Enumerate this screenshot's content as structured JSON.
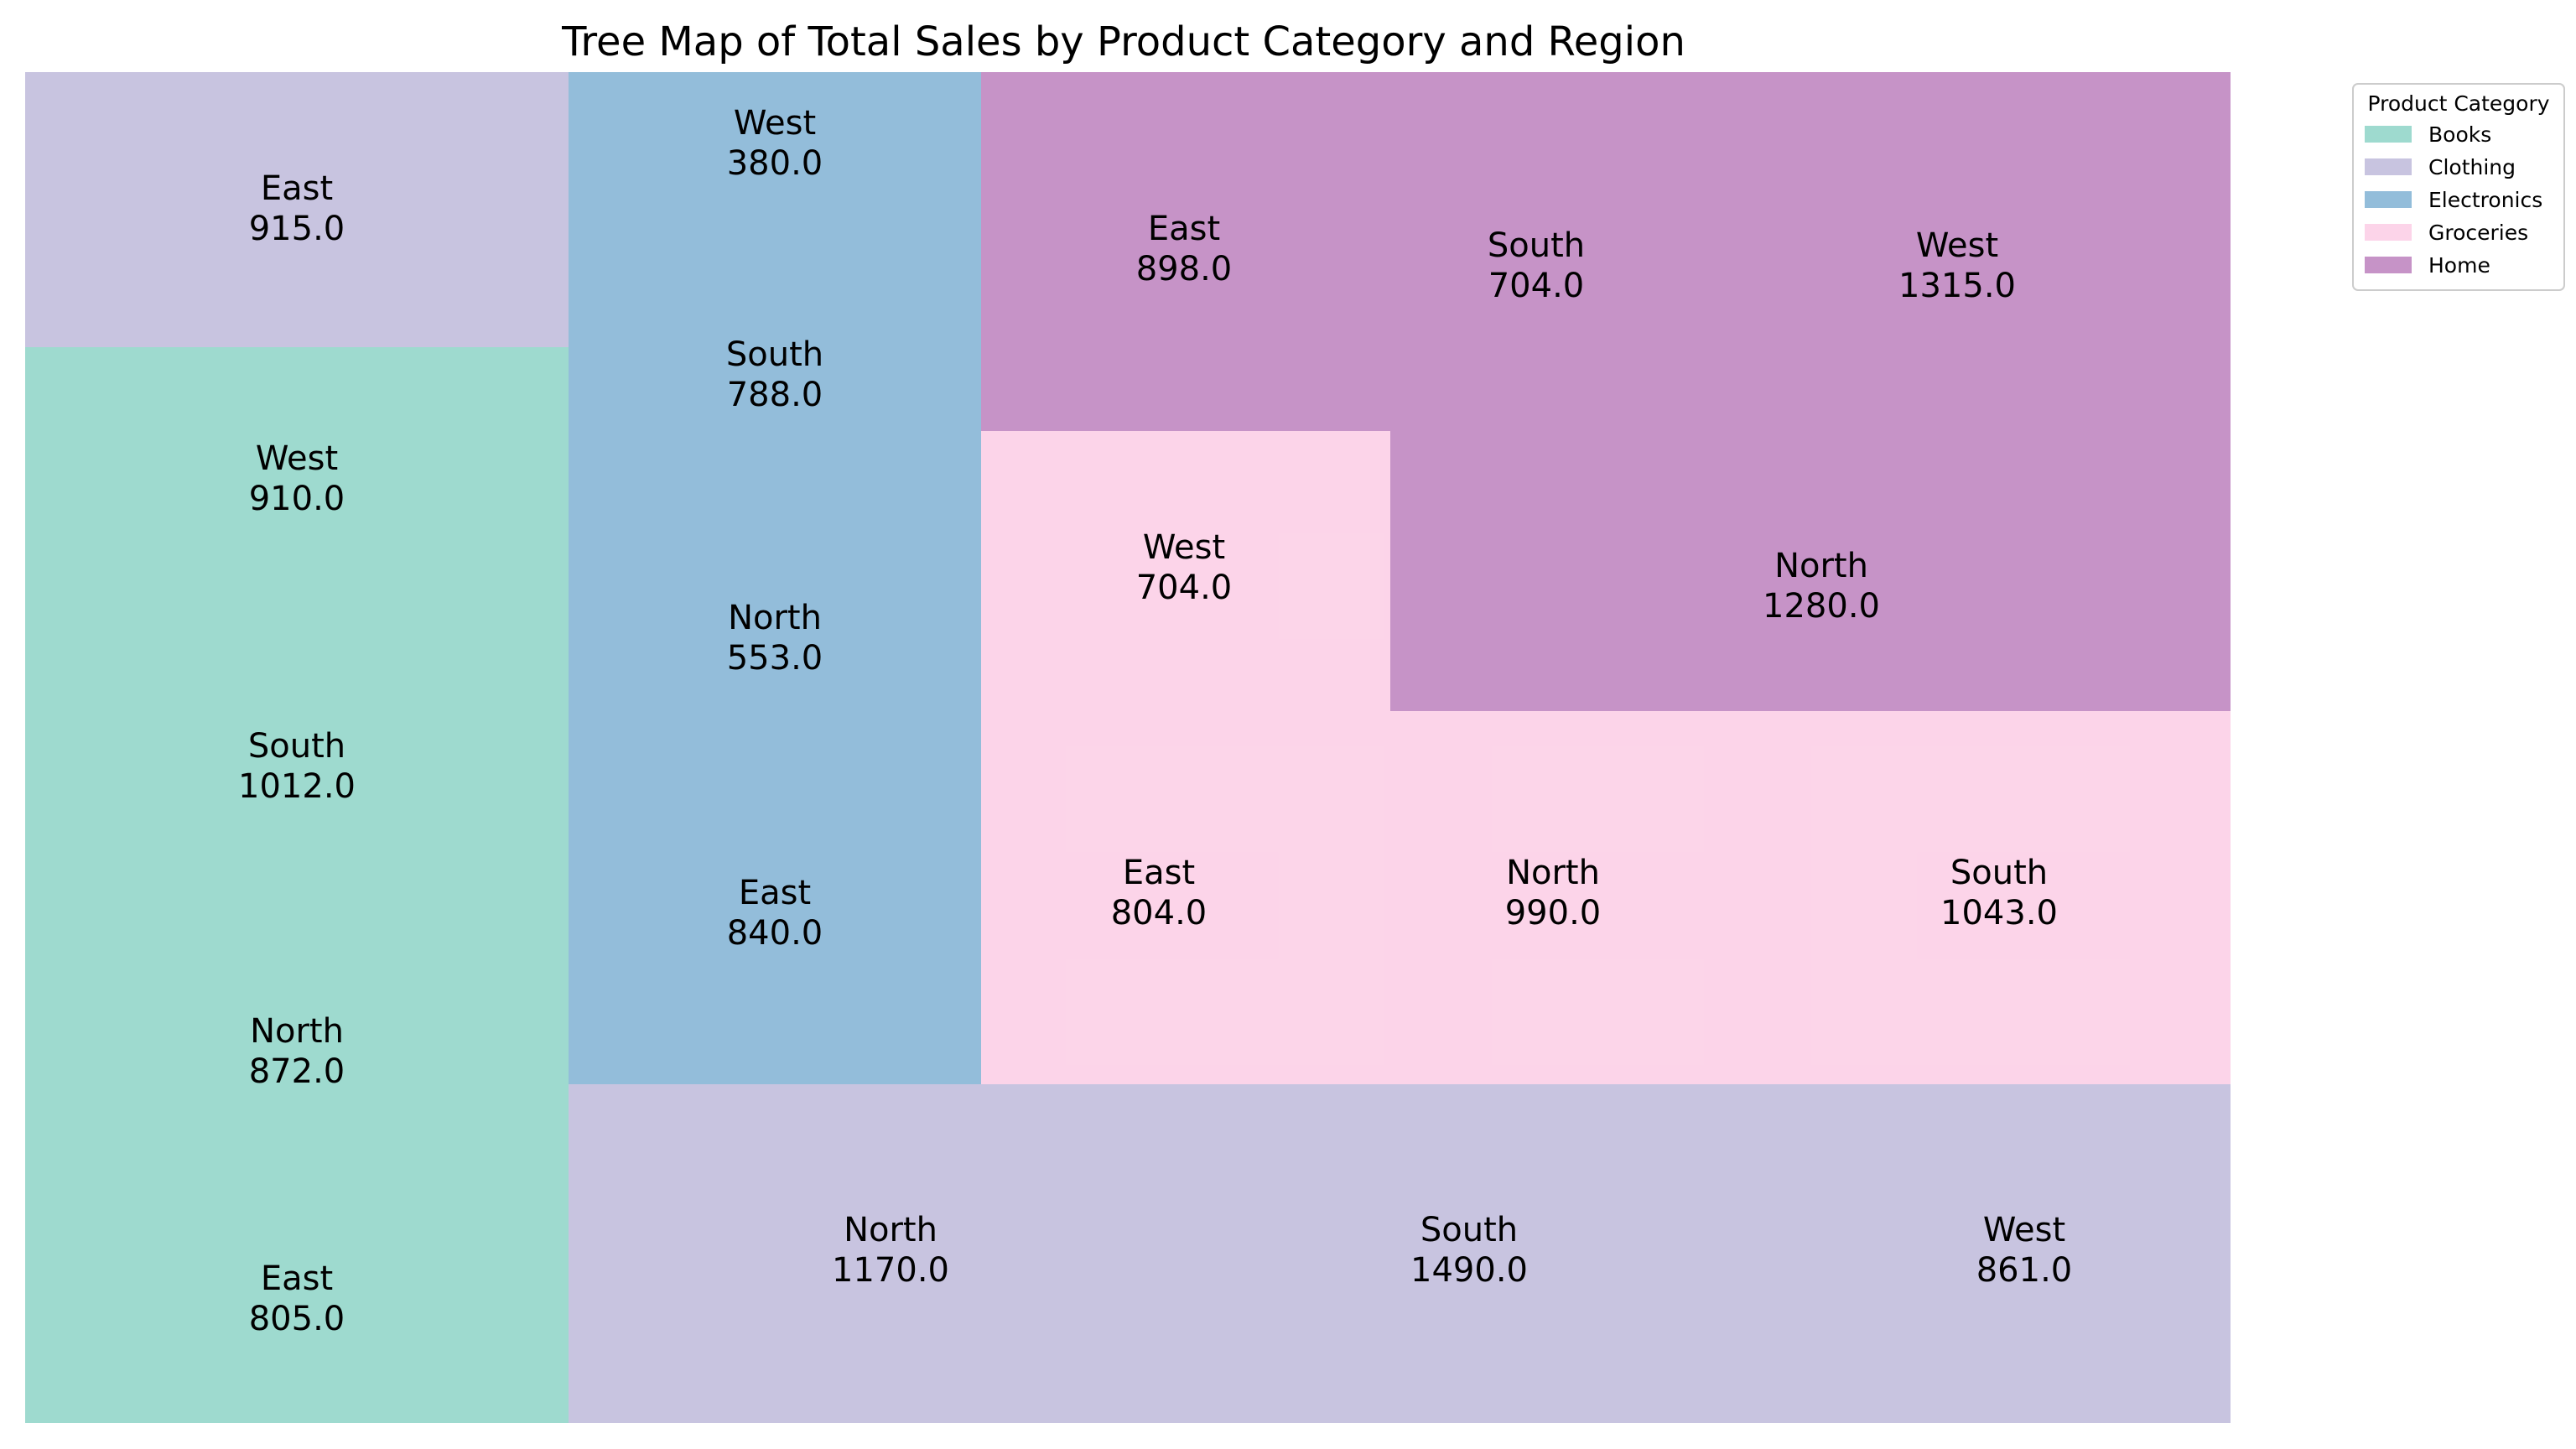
{
  "chart_data": {
    "type": "treemap",
    "title": "Tree Map of Total Sales by Product Category and Region",
    "legend": {
      "title": "Product Category",
      "placement": "upper-right-outside",
      "entries": [
        {
          "name": "Books",
          "color": "#8dd3c7"
        },
        {
          "name": "Clothing",
          "color": "#bebada"
        },
        {
          "name": "Electronics",
          "color": "#80b1d3"
        },
        {
          "name": "Groceries",
          "color": "#fccde5"
        },
        {
          "name": "Home",
          "color": "#bc80bd"
        }
      ]
    },
    "tiles": [
      {
        "category": "Books",
        "region": "East",
        "value": 805.0,
        "value_label": "805.0"
      },
      {
        "category": "Books",
        "region": "North",
        "value": 872.0,
        "value_label": "872.0"
      },
      {
        "category": "Books",
        "region": "South",
        "value": 1012.0,
        "value_label": "1012.0"
      },
      {
        "category": "Books",
        "region": "West",
        "value": 910.0,
        "value_label": "910.0"
      },
      {
        "category": "Clothing",
        "region": "East",
        "value": 915.0,
        "value_label": "915.0"
      },
      {
        "category": "Electronics",
        "region": "West",
        "value": 380.0,
        "value_label": "380.0"
      },
      {
        "category": "Electronics",
        "region": "South",
        "value": 788.0,
        "value_label": "788.0"
      },
      {
        "category": "Electronics",
        "region": "North",
        "value": 553.0,
        "value_label": "553.0"
      },
      {
        "category": "Electronics",
        "region": "East",
        "value": 840.0,
        "value_label": "840.0"
      },
      {
        "category": "Clothing",
        "region": "North",
        "value": 1170.0,
        "value_label": "1170.0"
      },
      {
        "category": "Clothing",
        "region": "South",
        "value": 1490.0,
        "value_label": "1490.0"
      },
      {
        "category": "Clothing",
        "region": "West",
        "value": 861.0,
        "value_label": "861.0"
      },
      {
        "category": "Groceries",
        "region": "East",
        "value": 804.0,
        "value_label": "804.0"
      },
      {
        "category": "Groceries",
        "region": "North",
        "value": 990.0,
        "value_label": "990.0"
      },
      {
        "category": "Groceries",
        "region": "South",
        "value": 1043.0,
        "value_label": "1043.0"
      },
      {
        "category": "Groceries",
        "region": "West",
        "value": 704.0,
        "value_label": "704.0"
      },
      {
        "category": "Home",
        "region": "East",
        "value": 898.0,
        "value_label": "898.0"
      },
      {
        "category": "Home",
        "region": "South",
        "value": 704.0,
        "value_label": "704.0"
      },
      {
        "category": "Home",
        "region": "West",
        "value": 1315.0,
        "value_label": "1315.0"
      },
      {
        "category": "Home",
        "region": "North",
        "value": 1280.0,
        "value_label": "1280.0"
      }
    ]
  }
}
